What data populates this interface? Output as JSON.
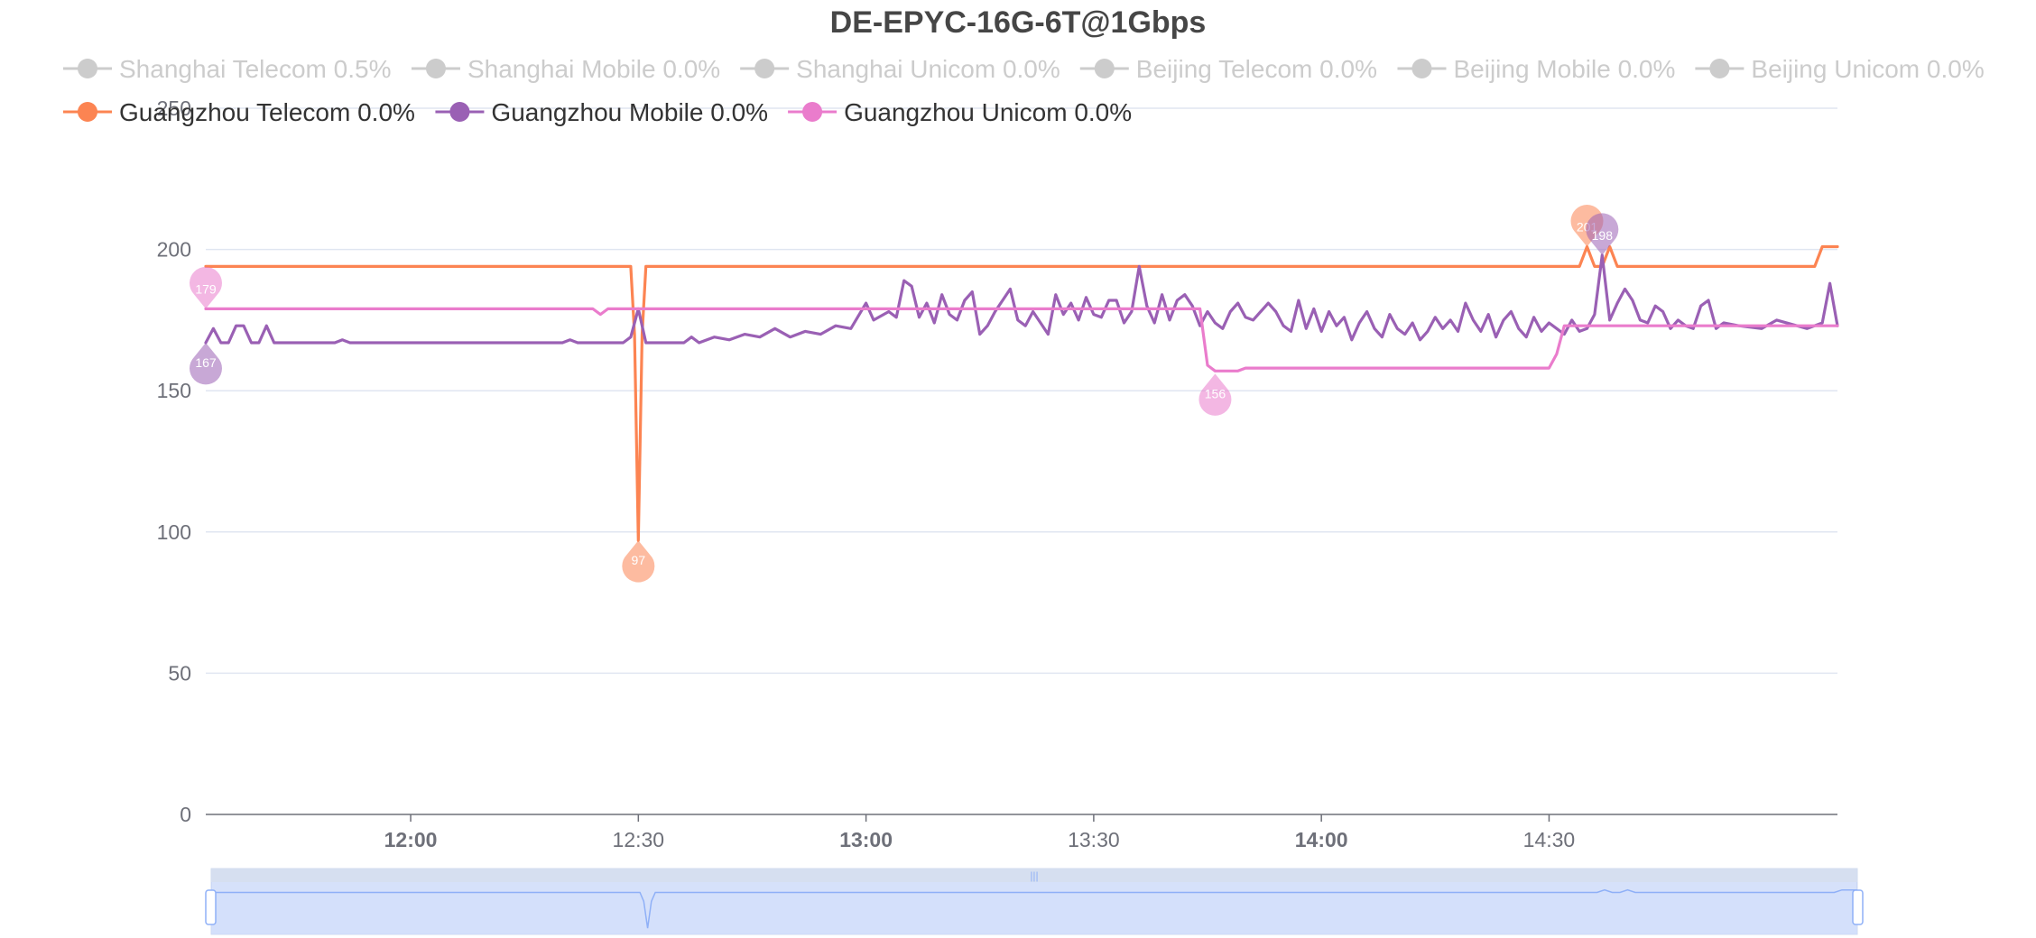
{
  "chart_data": {
    "type": "line",
    "title": "DE-EPYC-16G-6T@1Gbps",
    "xlabel": "",
    "ylabel": "",
    "ylim": [
      0,
      250
    ],
    "yticks": [
      0,
      50,
      100,
      150,
      200,
      250
    ],
    "xlim": [
      "11:33",
      "15:08"
    ],
    "xticks": [
      {
        "label": "12:00",
        "time": "12:00",
        "bold": true
      },
      {
        "label": "12:30",
        "time": "12:30",
        "bold": false
      },
      {
        "label": "13:00",
        "time": "13:00",
        "bold": true
      },
      {
        "label": "13:30",
        "time": "13:30",
        "bold": false
      },
      {
        "label": "14:00",
        "time": "14:00",
        "bold": true
      },
      {
        "label": "14:30",
        "time": "14:30",
        "bold": false
      }
    ],
    "grid": true,
    "legend_position": "top",
    "series": [
      {
        "name": "Shanghai Telecom 0.5%",
        "enabled": false,
        "color": "#5470c6",
        "points": []
      },
      {
        "name": "Shanghai Mobile 0.0%",
        "enabled": false,
        "color": "#91cc75",
        "points": []
      },
      {
        "name": "Shanghai Unicom 0.0%",
        "enabled": false,
        "color": "#fac858",
        "points": []
      },
      {
        "name": "Beijing Telecom 0.0%",
        "enabled": false,
        "color": "#ee6666",
        "points": []
      },
      {
        "name": "Beijing Mobile 0.0%",
        "enabled": false,
        "color": "#73c0de",
        "points": []
      },
      {
        "name": "Beijing Unicom 0.0%",
        "enabled": false,
        "color": "#3ba272",
        "points": []
      },
      {
        "name": "Guangzhou Telecom 0.0%",
        "enabled": true,
        "color": "#fc8452",
        "points": [
          [
            "11:33",
            194
          ],
          [
            "12:29",
            194
          ],
          [
            "12:29.5",
            170
          ],
          [
            "12:30",
            97
          ],
          [
            "12:30.5",
            170
          ],
          [
            "12:31",
            194
          ],
          [
            "14:34",
            194
          ],
          [
            "14:35",
            201
          ],
          [
            "14:36",
            194
          ],
          [
            "14:37",
            194
          ],
          [
            "14:38",
            201
          ],
          [
            "14:39",
            194
          ],
          [
            "15:05",
            194
          ],
          [
            "15:06",
            201
          ],
          [
            "15:08",
            201
          ]
        ],
        "markers": {
          "max": {
            "time": "14:35",
            "value": 201
          },
          "min": {
            "time": "12:30",
            "value": 97
          }
        }
      },
      {
        "name": "Guangzhou Mobile 0.0%",
        "enabled": true,
        "color": "#9a60b4",
        "points": [
          [
            "11:33",
            167
          ],
          [
            "11:34",
            172
          ],
          [
            "11:35",
            167
          ],
          [
            "11:36",
            167
          ],
          [
            "11:37",
            173
          ],
          [
            "11:38",
            173
          ],
          [
            "11:39",
            167
          ],
          [
            "11:40",
            167
          ],
          [
            "11:41",
            173
          ],
          [
            "11:42",
            167
          ],
          [
            "11:50",
            167
          ],
          [
            "11:51",
            168
          ],
          [
            "11:52",
            167
          ],
          [
            "12:20",
            167
          ],
          [
            "12:21",
            168
          ],
          [
            "12:22",
            167
          ],
          [
            "12:28",
            167
          ],
          [
            "12:29",
            169
          ],
          [
            "12:30",
            179
          ],
          [
            "12:31",
            167
          ],
          [
            "12:36",
            167
          ],
          [
            "12:37",
            169
          ],
          [
            "12:38",
            167
          ],
          [
            "12:40",
            169
          ],
          [
            "12:42",
            168
          ],
          [
            "12:44",
            170
          ],
          [
            "12:46",
            169
          ],
          [
            "12:48",
            172
          ],
          [
            "12:50",
            169
          ],
          [
            "12:52",
            171
          ],
          [
            "12:54",
            170
          ],
          [
            "12:56",
            173
          ],
          [
            "12:58",
            172
          ],
          [
            "13:00",
            181
          ],
          [
            "13:01",
            175
          ],
          [
            "13:03",
            178
          ],
          [
            "13:04",
            176
          ],
          [
            "13:05",
            189
          ],
          [
            "13:06",
            187
          ],
          [
            "13:07",
            176
          ],
          [
            "13:08",
            181
          ],
          [
            "13:09",
            174
          ],
          [
            "13:10",
            184
          ],
          [
            "13:11",
            177
          ],
          [
            "13:12",
            175
          ],
          [
            "13:13",
            182
          ],
          [
            "13:14",
            185
          ],
          [
            "13:15",
            170
          ],
          [
            "13:16",
            173
          ],
          [
            "13:17",
            178
          ],
          [
            "13:19",
            186
          ],
          [
            "13:20",
            175
          ],
          [
            "13:21",
            173
          ],
          [
            "13:22",
            178
          ],
          [
            "13:23",
            174
          ],
          [
            "13:24",
            170
          ],
          [
            "13:25",
            184
          ],
          [
            "13:26",
            177
          ],
          [
            "13:27",
            181
          ],
          [
            "13:28",
            175
          ],
          [
            "13:29",
            183
          ],
          [
            "13:30",
            177
          ],
          [
            "13:31",
            176
          ],
          [
            "13:32",
            182
          ],
          [
            "13:33",
            182
          ],
          [
            "13:34",
            174
          ],
          [
            "13:35",
            178
          ],
          [
            "13:36",
            194
          ],
          [
            "13:37",
            180
          ],
          [
            "13:38",
            174
          ],
          [
            "13:39",
            184
          ],
          [
            "13:40",
            175
          ],
          [
            "13:41",
            182
          ],
          [
            "13:42",
            184
          ],
          [
            "13:43",
            180
          ],
          [
            "13:44",
            173
          ],
          [
            "13:45",
            178
          ],
          [
            "13:46",
            174
          ],
          [
            "13:47",
            172
          ],
          [
            "13:48",
            178
          ],
          [
            "13:49",
            181
          ],
          [
            "13:50",
            176
          ],
          [
            "13:51",
            175
          ],
          [
            "13:52",
            178
          ],
          [
            "13:53",
            181
          ],
          [
            "13:54",
            178
          ],
          [
            "13:55",
            173
          ],
          [
            "13:56",
            171
          ],
          [
            "13:57",
            182
          ],
          [
            "13:58",
            172
          ],
          [
            "13:59",
            179
          ],
          [
            "14:00",
            171
          ],
          [
            "14:01",
            178
          ],
          [
            "14:02",
            173
          ],
          [
            "14:03",
            176
          ],
          [
            "14:04",
            168
          ],
          [
            "14:05",
            174
          ],
          [
            "14:06",
            178
          ],
          [
            "14:07",
            172
          ],
          [
            "14:08",
            169
          ],
          [
            "14:09",
            177
          ],
          [
            "14:10",
            172
          ],
          [
            "14:11",
            170
          ],
          [
            "14:12",
            174
          ],
          [
            "14:13",
            168
          ],
          [
            "14:14",
            171
          ],
          [
            "14:15",
            176
          ],
          [
            "14:16",
            172
          ],
          [
            "14:17",
            175
          ],
          [
            "14:18",
            171
          ],
          [
            "14:19",
            181
          ],
          [
            "14:20",
            175
          ],
          [
            "14:21",
            171
          ],
          [
            "14:22",
            177
          ],
          [
            "14:23",
            169
          ],
          [
            "14:24",
            175
          ],
          [
            "14:25",
            178
          ],
          [
            "14:26",
            172
          ],
          [
            "14:27",
            169
          ],
          [
            "14:28",
            176
          ],
          [
            "14:29",
            171
          ],
          [
            "14:30",
            174
          ],
          [
            "14:31",
            172
          ],
          [
            "14:32",
            170
          ],
          [
            "14:33",
            175
          ],
          [
            "14:34",
            171
          ],
          [
            "14:35",
            172
          ],
          [
            "14:36",
            177
          ],
          [
            "14:37",
            198
          ],
          [
            "14:38",
            175
          ],
          [
            "14:39",
            181
          ],
          [
            "14:40",
            186
          ],
          [
            "14:41",
            182
          ],
          [
            "14:42",
            175
          ],
          [
            "14:43",
            174
          ],
          [
            "14:44",
            180
          ],
          [
            "14:45",
            178
          ],
          [
            "14:46",
            172
          ],
          [
            "14:47",
            175
          ],
          [
            "14:48",
            173
          ],
          [
            "14:49",
            172
          ],
          [
            "14:50",
            180
          ],
          [
            "14:51",
            182
          ],
          [
            "14:52",
            172
          ],
          [
            "14:53",
            174
          ],
          [
            "14:55",
            173
          ],
          [
            "14:58",
            172
          ],
          [
            "15:00",
            175
          ],
          [
            "15:04",
            172
          ],
          [
            "15:06",
            174
          ],
          [
            "15:07",
            188
          ],
          [
            "15:08",
            173
          ]
        ],
        "markers": {
          "max": {
            "time": "14:37",
            "value": 198
          },
          "min": {
            "time": "11:33",
            "value": 167
          }
        }
      },
      {
        "name": "Guangzhou Unicom 0.0%",
        "enabled": true,
        "color": "#ea7ccc",
        "points": [
          [
            "11:33",
            179
          ],
          [
            "12:24",
            179
          ],
          [
            "12:25",
            177
          ],
          [
            "12:26",
            179
          ],
          [
            "13:44",
            179
          ],
          [
            "13:45",
            159
          ],
          [
            "13:46",
            157
          ],
          [
            "13:49",
            157
          ],
          [
            "13:50",
            158
          ],
          [
            "14:30",
            158
          ],
          [
            "14:31",
            163
          ],
          [
            "14:32",
            173
          ],
          [
            "15:08",
            173
          ]
        ],
        "markers": {
          "max": {
            "time": "11:33",
            "value": 179
          },
          "min": {
            "time": "13:46",
            "value": 156
          }
        }
      }
    ]
  },
  "data_zoom": {
    "start": 0,
    "end": 100,
    "handle_glyph": "|||"
  }
}
